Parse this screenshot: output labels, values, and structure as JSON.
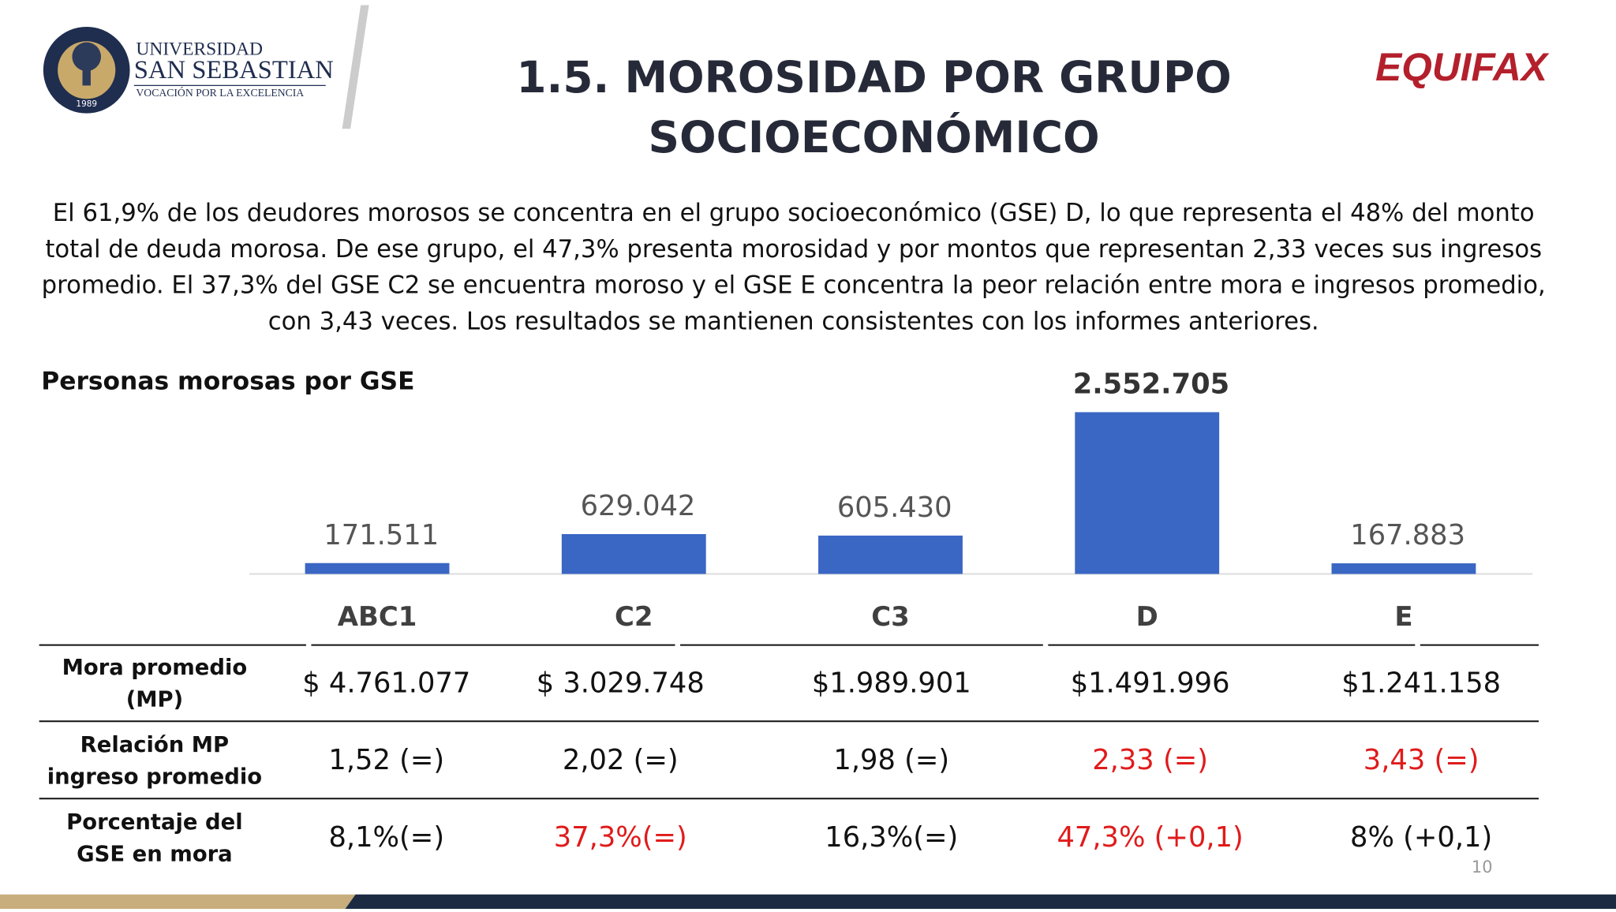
{
  "logo": {
    "line1": "UNIVERSIDAD",
    "line2": "SAN SEBASTIAN",
    "line3": "VOCACIÓN POR LA EXCELENCIA",
    "year": "1989"
  },
  "brand": "EQUIFAX",
  "title_lines": [
    "1.5. MOROSIDAD POR GRUPO",
    "SOCIOECONÓMICO"
  ],
  "paragraph_lines": [
    "El 61,9% de los deudores morosos se concentra en el grupo socioeconómico (GSE) D, lo que representa el 48% del monto",
    "total de deuda morosa. De ese grupo, el 47,3% presenta morosidad y por montos que representan 2,33 veces sus ingresos",
    "promedio. El 37,3% del GSE C2 se encuentra moroso y el GSE E concentra la peor relación entre mora e ingresos promedio,",
    "con 3,43 veces. Los resultados se mantienen consistentes con los informes anteriores."
  ],
  "chart_data": {
    "type": "bar",
    "title": "Personas morosas por GSE",
    "categories": [
      "ABC1",
      "C2",
      "C3",
      "D",
      "E"
    ],
    "values": [
      171511,
      629042,
      605430,
      2552705,
      167883
    ],
    "value_labels": [
      "171.511",
      "629.042",
      "605.430",
      "2.552.705",
      "167.883"
    ],
    "color": "#3a66c4"
  },
  "table": {
    "rows": [
      {
        "label": [
          "Mora promedio",
          "(MP)"
        ],
        "cells": [
          {
            "text": "$ 4.761.077",
            "color": "#111111"
          },
          {
            "text": "$ 3.029.748",
            "color": "#111111"
          },
          {
            "text": "$1.989.901",
            "color": "#111111"
          },
          {
            "text": "$1.491.996",
            "color": "#111111"
          },
          {
            "text": "$1.241.158",
            "color": "#111111"
          }
        ]
      },
      {
        "label": [
          "Relación MP",
          "ingreso promedio"
        ],
        "cells": [
          {
            "text": "1,52 (=)",
            "color": "#111111"
          },
          {
            "text": "2,02 (=)",
            "color": "#111111"
          },
          {
            "text": "1,98 (=)",
            "color": "#111111"
          },
          {
            "text": "2,33 (=)",
            "color": "#e01b1b"
          },
          {
            "text": "3,43 (=)",
            "color": "#e01b1b"
          }
        ]
      },
      {
        "label": [
          "Porcentaje del",
          "GSE en mora"
        ],
        "cells": [
          {
            "text": "8,1%(=)",
            "color": "#111111"
          },
          {
            "text": "37,3%(=)",
            "color": "#e01b1b"
          },
          {
            "text": "16,3%(=)",
            "color": "#111111"
          },
          {
            "text": "47,3% (+0,1)",
            "color": "#e01b1b"
          },
          {
            "text": "8% (+0,1)",
            "color": "#111111"
          }
        ]
      }
    ]
  },
  "page_number": "10"
}
